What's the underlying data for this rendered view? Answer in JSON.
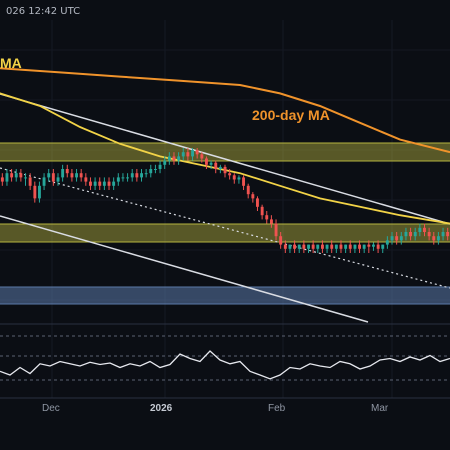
{
  "header": {
    "timestamp": "026 12:42 UTC"
  },
  "chart_data": {
    "type": "line",
    "title": "",
    "xlabel": "",
    "ylabel": "",
    "x_ticks": [
      {
        "label": "Dec",
        "emphasis": false
      },
      {
        "label": "2026",
        "emphasis": true
      },
      {
        "label": "Feb",
        "emphasis": false
      },
      {
        "label": "Mar",
        "emphasis": false
      }
    ],
    "annotations": [
      {
        "id": "ma50",
        "text": "MA"
      },
      {
        "id": "ma200",
        "text": "200-day MA"
      }
    ],
    "zones": [
      {
        "name": "resistance-upper",
        "color": "#b6b43f"
      },
      {
        "name": "resistance-lower",
        "color": "#b6b43f"
      },
      {
        "name": "support",
        "color": "#5b79a8"
      }
    ],
    "colors": {
      "up": "#26a69a",
      "down": "#ef5350",
      "ma50": "#f2d347",
      "ma200": "#f0932b",
      "channel": "#d9dce3",
      "rsi": "#e6e8ee",
      "background": "#0b0e14"
    },
    "candles": [
      [
        8,
        7,
        9,
        6
      ],
      [
        7,
        9,
        10,
        6
      ],
      [
        9,
        8,
        10,
        7
      ],
      [
        8,
        9,
        10,
        7
      ],
      [
        9,
        8,
        10,
        7
      ],
      [
        8,
        8,
        9,
        6
      ],
      [
        8,
        6,
        9,
        5
      ],
      [
        6,
        3,
        7,
        2
      ],
      [
        3,
        6,
        7,
        2
      ],
      [
        6,
        8,
        9,
        5
      ],
      [
        8,
        9,
        10,
        7
      ],
      [
        9,
        7,
        10,
        6
      ],
      [
        7,
        8,
        9,
        6
      ],
      [
        8,
        10,
        11,
        7
      ],
      [
        10,
        9,
        11,
        8
      ],
      [
        9,
        8,
        10,
        7
      ],
      [
        8,
        9,
        10,
        7
      ],
      [
        9,
        8,
        10,
        7
      ],
      [
        8,
        7,
        9,
        6
      ],
      [
        7,
        6,
        8,
        5
      ],
      [
        6,
        7,
        8,
        5
      ],
      [
        7,
        6,
        8,
        5
      ],
      [
        6,
        7,
        8,
        5
      ],
      [
        7,
        6,
        8,
        5
      ],
      [
        6,
        7,
        8,
        5
      ],
      [
        7,
        8,
        9,
        6
      ],
      [
        8,
        8,
        9,
        7
      ],
      [
        8,
        8,
        9,
        7
      ],
      [
        8,
        9,
        10,
        7
      ],
      [
        9,
        8,
        10,
        7
      ],
      [
        8,
        9,
        10,
        7
      ],
      [
        9,
        9,
        10,
        8
      ],
      [
        9,
        10,
        11,
        8
      ],
      [
        10,
        10,
        11,
        9
      ],
      [
        10,
        11,
        12,
        9
      ],
      [
        11,
        12,
        13,
        10
      ],
      [
        12,
        13,
        14,
        11
      ],
      [
        13,
        12,
        14,
        11
      ],
      [
        12,
        13,
        14,
        11
      ],
      [
        13,
        14,
        15,
        12
      ],
      [
        14,
        13,
        15,
        12
      ],
      [
        13,
        14.5,
        15,
        12
      ],
      [
        14.5,
        13.5,
        15,
        12.5
      ],
      [
        13.5,
        12.5,
        14,
        11.5
      ],
      [
        12.5,
        11,
        13,
        10
      ],
      [
        11,
        11.5,
        12,
        10
      ],
      [
        11.5,
        10,
        12,
        9
      ],
      [
        10,
        10.5,
        11,
        9
      ],
      [
        10.5,
        9,
        11,
        8
      ],
      [
        9,
        8.5,
        10,
        7.5
      ],
      [
        8.5,
        7.5,
        9,
        6.5
      ],
      [
        7.5,
        8,
        8.5,
        6.5
      ],
      [
        8,
        6,
        8.5,
        5
      ],
      [
        6,
        4,
        6.5,
        3
      ],
      [
        4,
        3,
        4.5,
        2
      ],
      [
        3,
        1,
        3.5,
        0
      ],
      [
        1,
        -1,
        1.5,
        -2
      ],
      [
        -1,
        -2,
        0,
        -3
      ],
      [
        -2,
        -3,
        -1,
        -4
      ],
      [
        -3,
        -6,
        -2,
        -7
      ],
      [
        -6,
        -8,
        -5,
        -9
      ],
      [
        -8,
        -9,
        -7,
        -10
      ],
      [
        -9,
        -8,
        -8,
        -10
      ],
      [
        -8,
        -9,
        -7,
        -10
      ],
      [
        -9,
        -8,
        -8,
        -10
      ],
      [
        -8,
        -9,
        -7,
        -10
      ],
      [
        -9,
        -8,
        -8,
        -10
      ],
      [
        -8,
        -9,
        -7,
        -10
      ],
      [
        -9,
        -8,
        -8,
        -10
      ],
      [
        -8,
        -9,
        -7,
        -10
      ],
      [
        -9,
        -8,
        -8,
        -10
      ],
      [
        -8,
        -9,
        -7,
        -10
      ],
      [
        -9,
        -8,
        -8,
        -10
      ],
      [
        -8,
        -9,
        -7,
        -10
      ],
      [
        -9,
        -8,
        -8,
        -10
      ],
      [
        -8,
        -9,
        -7,
        -10
      ],
      [
        -9,
        -8,
        -8,
        -10
      ],
      [
        -8,
        -9,
        -7,
        -10
      ],
      [
        -9,
        -8,
        -8,
        -10
      ],
      [
        -8,
        -8.5,
        -7,
        -10
      ],
      [
        -8.5,
        -8,
        -7.5,
        -9.5
      ],
      [
        -8,
        -9,
        -7,
        -10
      ],
      [
        -9,
        -8,
        -8,
        -10
      ],
      [
        -8,
        -7,
        -6,
        -9
      ],
      [
        -7,
        -6,
        -5,
        -8
      ],
      [
        -6,
        -7,
        -5,
        -8
      ],
      [
        -7,
        -6,
        -5,
        -8
      ],
      [
        -6,
        -5,
        -4,
        -7
      ],
      [
        -5,
        -6,
        -4,
        -7
      ],
      [
        -6,
        -5,
        -4,
        -7
      ],
      [
        -5,
        -4,
        -3,
        -6
      ],
      [
        -4,
        -5,
        -3,
        -6
      ],
      [
        -5,
        -6,
        -4,
        -7
      ],
      [
        -6,
        -7,
        -5,
        -8
      ],
      [
        -7,
        -6,
        -5,
        -8
      ],
      [
        -6,
        -5,
        -4,
        -7
      ],
      [
        -5,
        -6,
        -4,
        -7
      ]
    ],
    "ma50": [
      [
        -20,
        30
      ],
      [
        0,
        28
      ],
      [
        40,
        25
      ],
      [
        80,
        20
      ],
      [
        120,
        16
      ],
      [
        160,
        13
      ],
      [
        200,
        11
      ],
      [
        240,
        9
      ],
      [
        280,
        6
      ],
      [
        320,
        3
      ],
      [
        360,
        1
      ],
      [
        400,
        -1
      ],
      [
        450,
        -3
      ]
    ],
    "ma200": [
      [
        0,
        34
      ],
      [
        60,
        33
      ],
      [
        120,
        32
      ],
      [
        180,
        31
      ],
      [
        240,
        30
      ],
      [
        280,
        28
      ],
      [
        320,
        25
      ],
      [
        360,
        21
      ],
      [
        400,
        17
      ],
      [
        450,
        14
      ]
    ],
    "rsi": [
      [
        0,
        45
      ],
      [
        10,
        40
      ],
      [
        20,
        50
      ],
      [
        30,
        42
      ],
      [
        40,
        55
      ],
      [
        50,
        52
      ],
      [
        60,
        58
      ],
      [
        70,
        55
      ],
      [
        80,
        52
      ],
      [
        90,
        57
      ],
      [
        100,
        54
      ],
      [
        110,
        56
      ],
      [
        120,
        50
      ],
      [
        130,
        55
      ],
      [
        140,
        52
      ],
      [
        150,
        58
      ],
      [
        160,
        50
      ],
      [
        170,
        54
      ],
      [
        180,
        68
      ],
      [
        190,
        62
      ],
      [
        200,
        58
      ],
      [
        210,
        72
      ],
      [
        220,
        60
      ],
      [
        230,
        55
      ],
      [
        240,
        58
      ],
      [
        250,
        45
      ],
      [
        260,
        40
      ],
      [
        270,
        35
      ],
      [
        280,
        40
      ],
      [
        290,
        50
      ],
      [
        300,
        48
      ],
      [
        310,
        55
      ],
      [
        320,
        52
      ],
      [
        330,
        50
      ],
      [
        340,
        58
      ],
      [
        350,
        55
      ],
      [
        360,
        48
      ],
      [
        370,
        52
      ],
      [
        380,
        60
      ],
      [
        390,
        62
      ],
      [
        400,
        58
      ],
      [
        410,
        64
      ],
      [
        420,
        60
      ],
      [
        430,
        66
      ],
      [
        440,
        58
      ],
      [
        450,
        62
      ]
    ]
  }
}
